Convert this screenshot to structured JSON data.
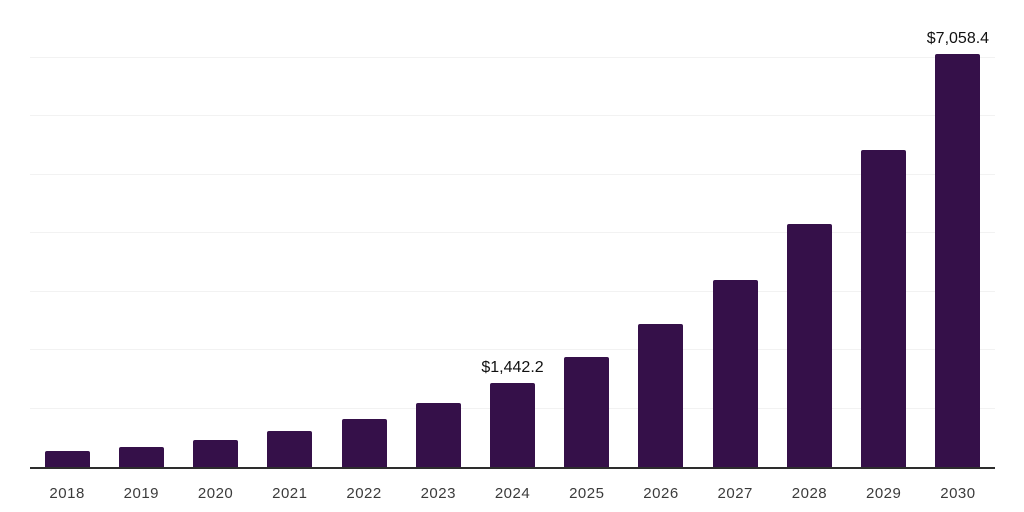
{
  "chart_data": {
    "type": "bar",
    "title": "",
    "xlabel": "",
    "ylabel": "",
    "categories": [
      "2018",
      "2019",
      "2020",
      "2021",
      "2022",
      "2023",
      "2024",
      "2025",
      "2026",
      "2027",
      "2028",
      "2029",
      "2030"
    ],
    "values": [
      278,
      350,
      458,
      619,
      829,
      1086,
      1442.2,
      1879.2,
      2448.6,
      3190.6,
      4157.2,
      5416.9,
      7058.4
    ],
    "data_labels": [
      "",
      "",
      "",
      "",
      "",
      "",
      "$1,442.2",
      "",
      "",
      "",
      "",
      "",
      "$7,058.4"
    ],
    "ylim": [
      0,
      8000
    ],
    "gridline_step": 1000,
    "grid": true,
    "legend": false,
    "y_axis_tick_labels_visible": false
  },
  "colors": {
    "bar": "#351049",
    "axis": "#2d2d2d",
    "gridline": "#f2f2f2",
    "data_label": "#111111",
    "tick_label": "#3b3b3b",
    "background": "#ffffff"
  }
}
